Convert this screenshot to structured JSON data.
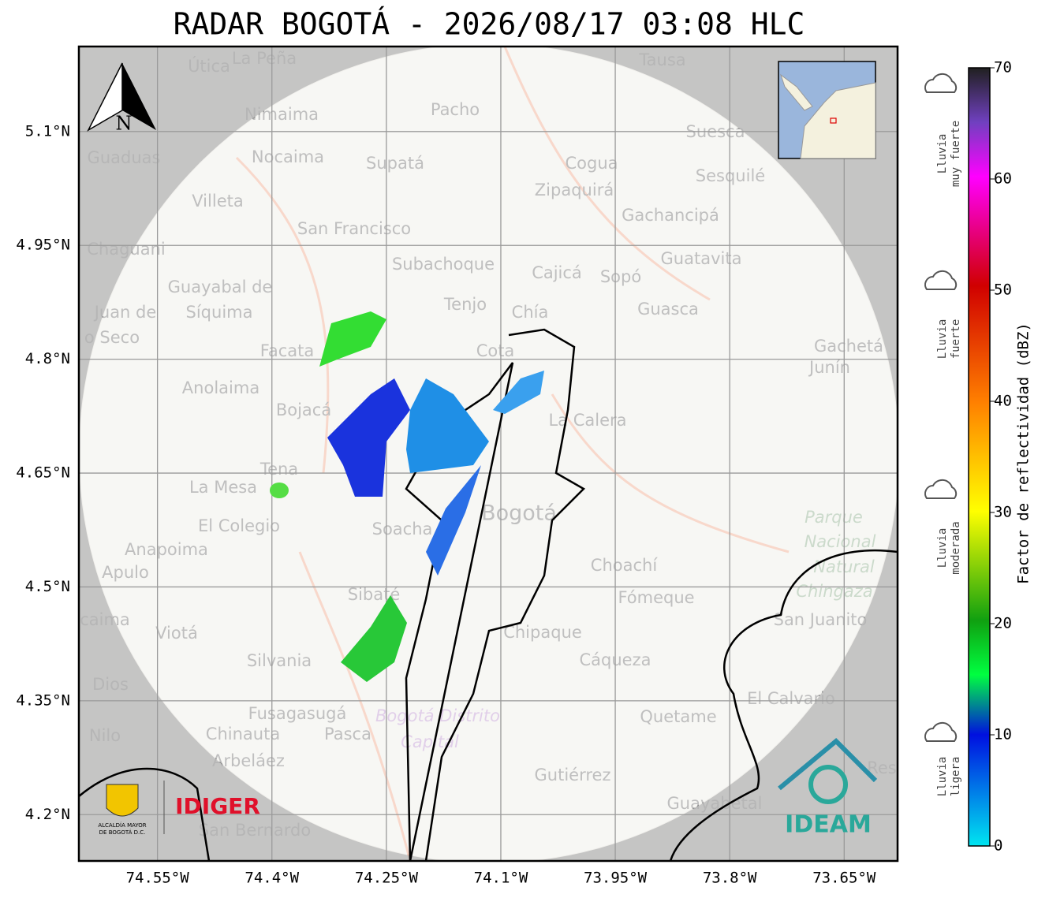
{
  "title": "RADAR BOGOTÁ - 2026/08/17 03:08 HLC",
  "map": {
    "lon_range": [
      -74.653,
      -73.58
    ],
    "lat_range": [
      4.139,
      5.212
    ],
    "lat_ticks": [
      {
        "value": 5.1,
        "label": "5.1°N"
      },
      {
        "value": 4.95,
        "label": "4.95°N"
      },
      {
        "value": 4.8,
        "label": "4.8°N"
      },
      {
        "value": 4.65,
        "label": "4.65°N"
      },
      {
        "value": 4.5,
        "label": "4.5°N"
      },
      {
        "value": 4.35,
        "label": "4.35°N"
      },
      {
        "value": 4.2,
        "label": "4.2°N"
      }
    ],
    "lon_ticks": [
      {
        "value": -74.55,
        "label": "74.55°W"
      },
      {
        "value": -74.4,
        "label": "74.4°W"
      },
      {
        "value": -74.25,
        "label": "74.25°W"
      },
      {
        "value": -74.1,
        "label": "74.1°W"
      },
      {
        "value": -73.95,
        "label": "73.95°W"
      },
      {
        "value": -73.8,
        "label": "73.8°W"
      },
      {
        "value": -73.65,
        "label": "73.65°W"
      }
    ],
    "places": [
      "Útica",
      "La Peña",
      "Tausa",
      "Pacho",
      "Nimaima",
      "Guaduas",
      "Nocaima",
      "Supatá",
      "Cogua",
      "Suesca",
      "Sesquilé",
      "Zipaquirá",
      "Villeta",
      "Gachancipá",
      "San Francisco",
      "Chaguani",
      "Guatavita",
      "Subachoque",
      "Cajicá",
      "Sopó",
      "Guayabal de",
      "Síquima",
      "Juan de",
      "o Seco",
      "Tenjo",
      "Chía",
      "Guasca",
      "Facata",
      "Cota",
      "Gachetá",
      "Junín",
      "Anolaima",
      "Bojacá",
      "La Calera",
      "Tena",
      "La Mesa",
      "El Colegio",
      "Bogotá",
      "Soacha",
      "Anapoima",
      "Apulo",
      "Choachí",
      "Fómeque",
      "San Juanito",
      "Sibaté",
      "caima",
      "Viotá",
      "Chipaque",
      "Silvania",
      "Cáqueza",
      "Dios",
      "El Calvario",
      "Fusagasugá",
      "Quetame",
      "Nilo",
      "Chinauta",
      "Pasca",
      "Arbeláez",
      "Gutiérrez",
      "Res",
      "Guayabetal",
      "San Bernardo"
    ],
    "park": [
      "Parque",
      "Nacional",
      "Natural",
      "Chingaza"
    ],
    "district": [
      "Bogotá Distrito",
      "Capital"
    ],
    "north": "N"
  },
  "colorbar": {
    "label": "Factor de reflectividad (dBZ)",
    "lim": [
      0,
      70
    ],
    "ticks": [
      0,
      10,
      20,
      30,
      40,
      50,
      60,
      70
    ]
  },
  "legend": [
    [
      "Lluvia",
      "muy fuerte"
    ],
    [
      "Lluvia",
      "fuerte"
    ],
    [
      "Lluvia",
      "moderada"
    ],
    [
      "Lluvia",
      "ligera"
    ]
  ],
  "logos": {
    "alcaldia": [
      "ALCALDÍA MAYOR",
      "DE BOGOTÁ D.C."
    ],
    "idiger": "IDIGER",
    "ideam": "IDEAM"
  }
}
